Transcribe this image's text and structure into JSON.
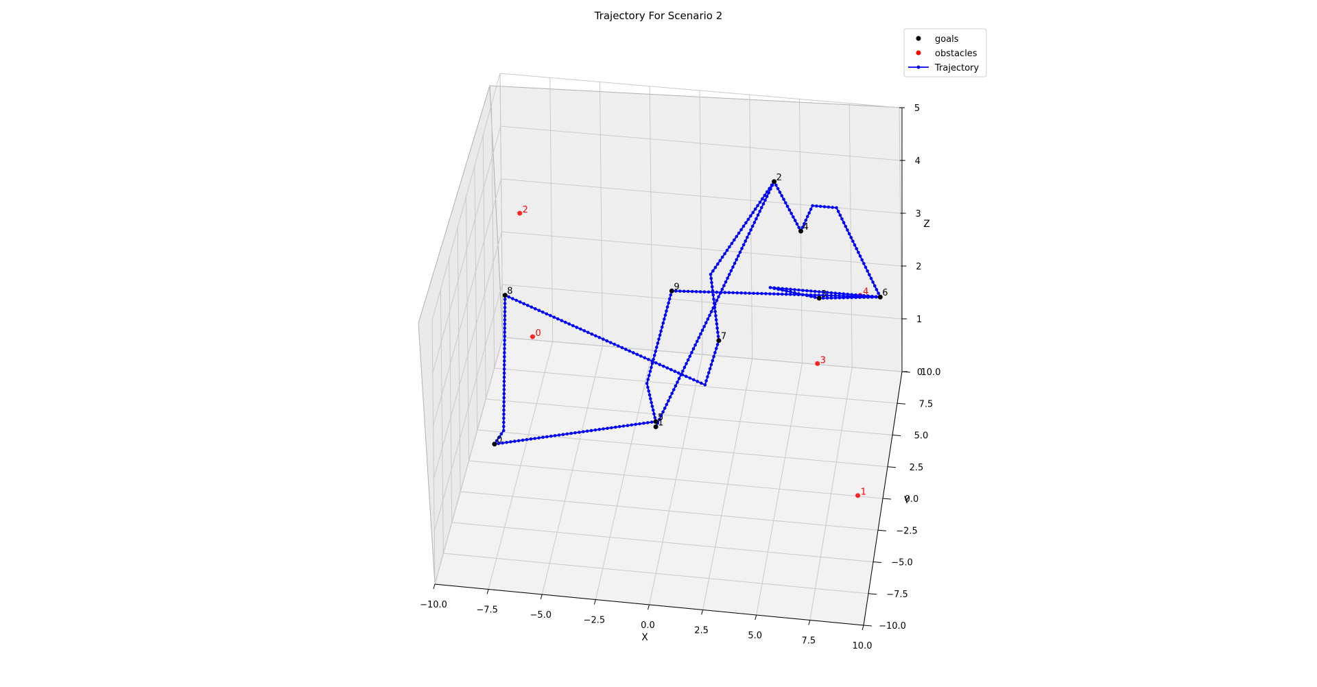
{
  "chart_data": {
    "type": "scatter3d",
    "title": "Trajectory For Scenario 2",
    "xlabel": "X",
    "ylabel": "Y",
    "zlabel": "Z",
    "xlim": [
      -10,
      10
    ],
    "ylim": [
      -10,
      10
    ],
    "zlim": [
      0,
      5
    ],
    "x_ticks": [
      "−10.0",
      "−7.5",
      "−5.0",
      "−2.5",
      "0.0",
      "2.5",
      "5.0",
      "7.5",
      "10.0"
    ],
    "y_ticks": [
      "−10.0",
      "−7.5",
      "−5.0",
      "−2.5",
      "0.0",
      "2.5",
      "5.0",
      "7.5",
      "10.0"
    ],
    "z_ticks": [
      "0",
      "1",
      "2",
      "3",
      "4",
      "5"
    ],
    "grid": true,
    "legend_position": "top-right",
    "legend": [
      {
        "label": "goals",
        "color": "#000000",
        "marker": "dot"
      },
      {
        "label": "obstacles",
        "color": "#ff0000",
        "marker": "dot"
      },
      {
        "label": "Trajectory",
        "color": "#0000ff",
        "marker": "line-dot"
      }
    ],
    "goals": [
      {
        "label": "1",
        "x": -1.5,
        "y": 4.0,
        "z": 0.0
      },
      {
        "label": "2",
        "x": 4.0,
        "y": 7.5,
        "z": 4.0
      },
      {
        "label": "3",
        "x": 6.0,
        "y": 9.0,
        "z": 1.5
      },
      {
        "label": "4",
        "x": 5.0,
        "y": 10.0,
        "z": 2.5
      },
      {
        "label": "5",
        "x": -1.5,
        "y": 4.0,
        "z": 0.1
      },
      {
        "label": "6",
        "x": 9.0,
        "y": 9.5,
        "z": 1.5
      },
      {
        "label": "7",
        "x": 1.5,
        "y": 5.0,
        "z": 1.5
      },
      {
        "label": "8",
        "x": -9.0,
        "y": 5.0,
        "z": 2.0
      },
      {
        "label": "9",
        "x": -1.0,
        "y": 6.5,
        "z": 2.0
      },
      {
        "label": "0",
        "x": -9.0,
        "y": 1.5,
        "z": 0.0
      }
    ],
    "obstacles": [
      {
        "label": "0",
        "x": -7.5,
        "y": 4.0,
        "z": 1.5
      },
      {
        "label": "1",
        "x": 9.0,
        "y": -2.0,
        "z": 0.5
      },
      {
        "label": "2",
        "x": -9.0,
        "y": 9.5,
        "z": 2.5
      },
      {
        "label": "3",
        "x": 6.0,
        "y": 8.0,
        "z": 0.5
      },
      {
        "label": "4",
        "x": 8.0,
        "y": 9.5,
        "z": 1.5
      }
    ],
    "trajectory": {
      "name": "Trajectory",
      "x": [
        -1.5,
        4.0,
        5.0,
        5.6,
        6.8,
        9.0,
        3.5,
        6.0,
        9.0,
        -1.0,
        -1.8,
        -1.5,
        -9.0,
        -8.6,
        -9.0,
        1.0,
        1.5,
        1.0,
        4.0
      ],
      "y": [
        4.0,
        7.5,
        10.0,
        10.0,
        10.0,
        9.5,
        9.5,
        9.0,
        9.5,
        6.5,
        3.2,
        4.0,
        1.5,
        1.8,
        5.0,
        3.5,
        5.0,
        6.0,
        7.5
      ],
      "z": [
        0.0,
        4.0,
        2.5,
        3.0,
        3.0,
        1.5,
        1.5,
        1.5,
        1.5,
        2.0,
        1.0,
        0.1,
        0.0,
        0.2,
        2.0,
        1.0,
        1.5,
        2.5,
        4.0
      ]
    }
  }
}
